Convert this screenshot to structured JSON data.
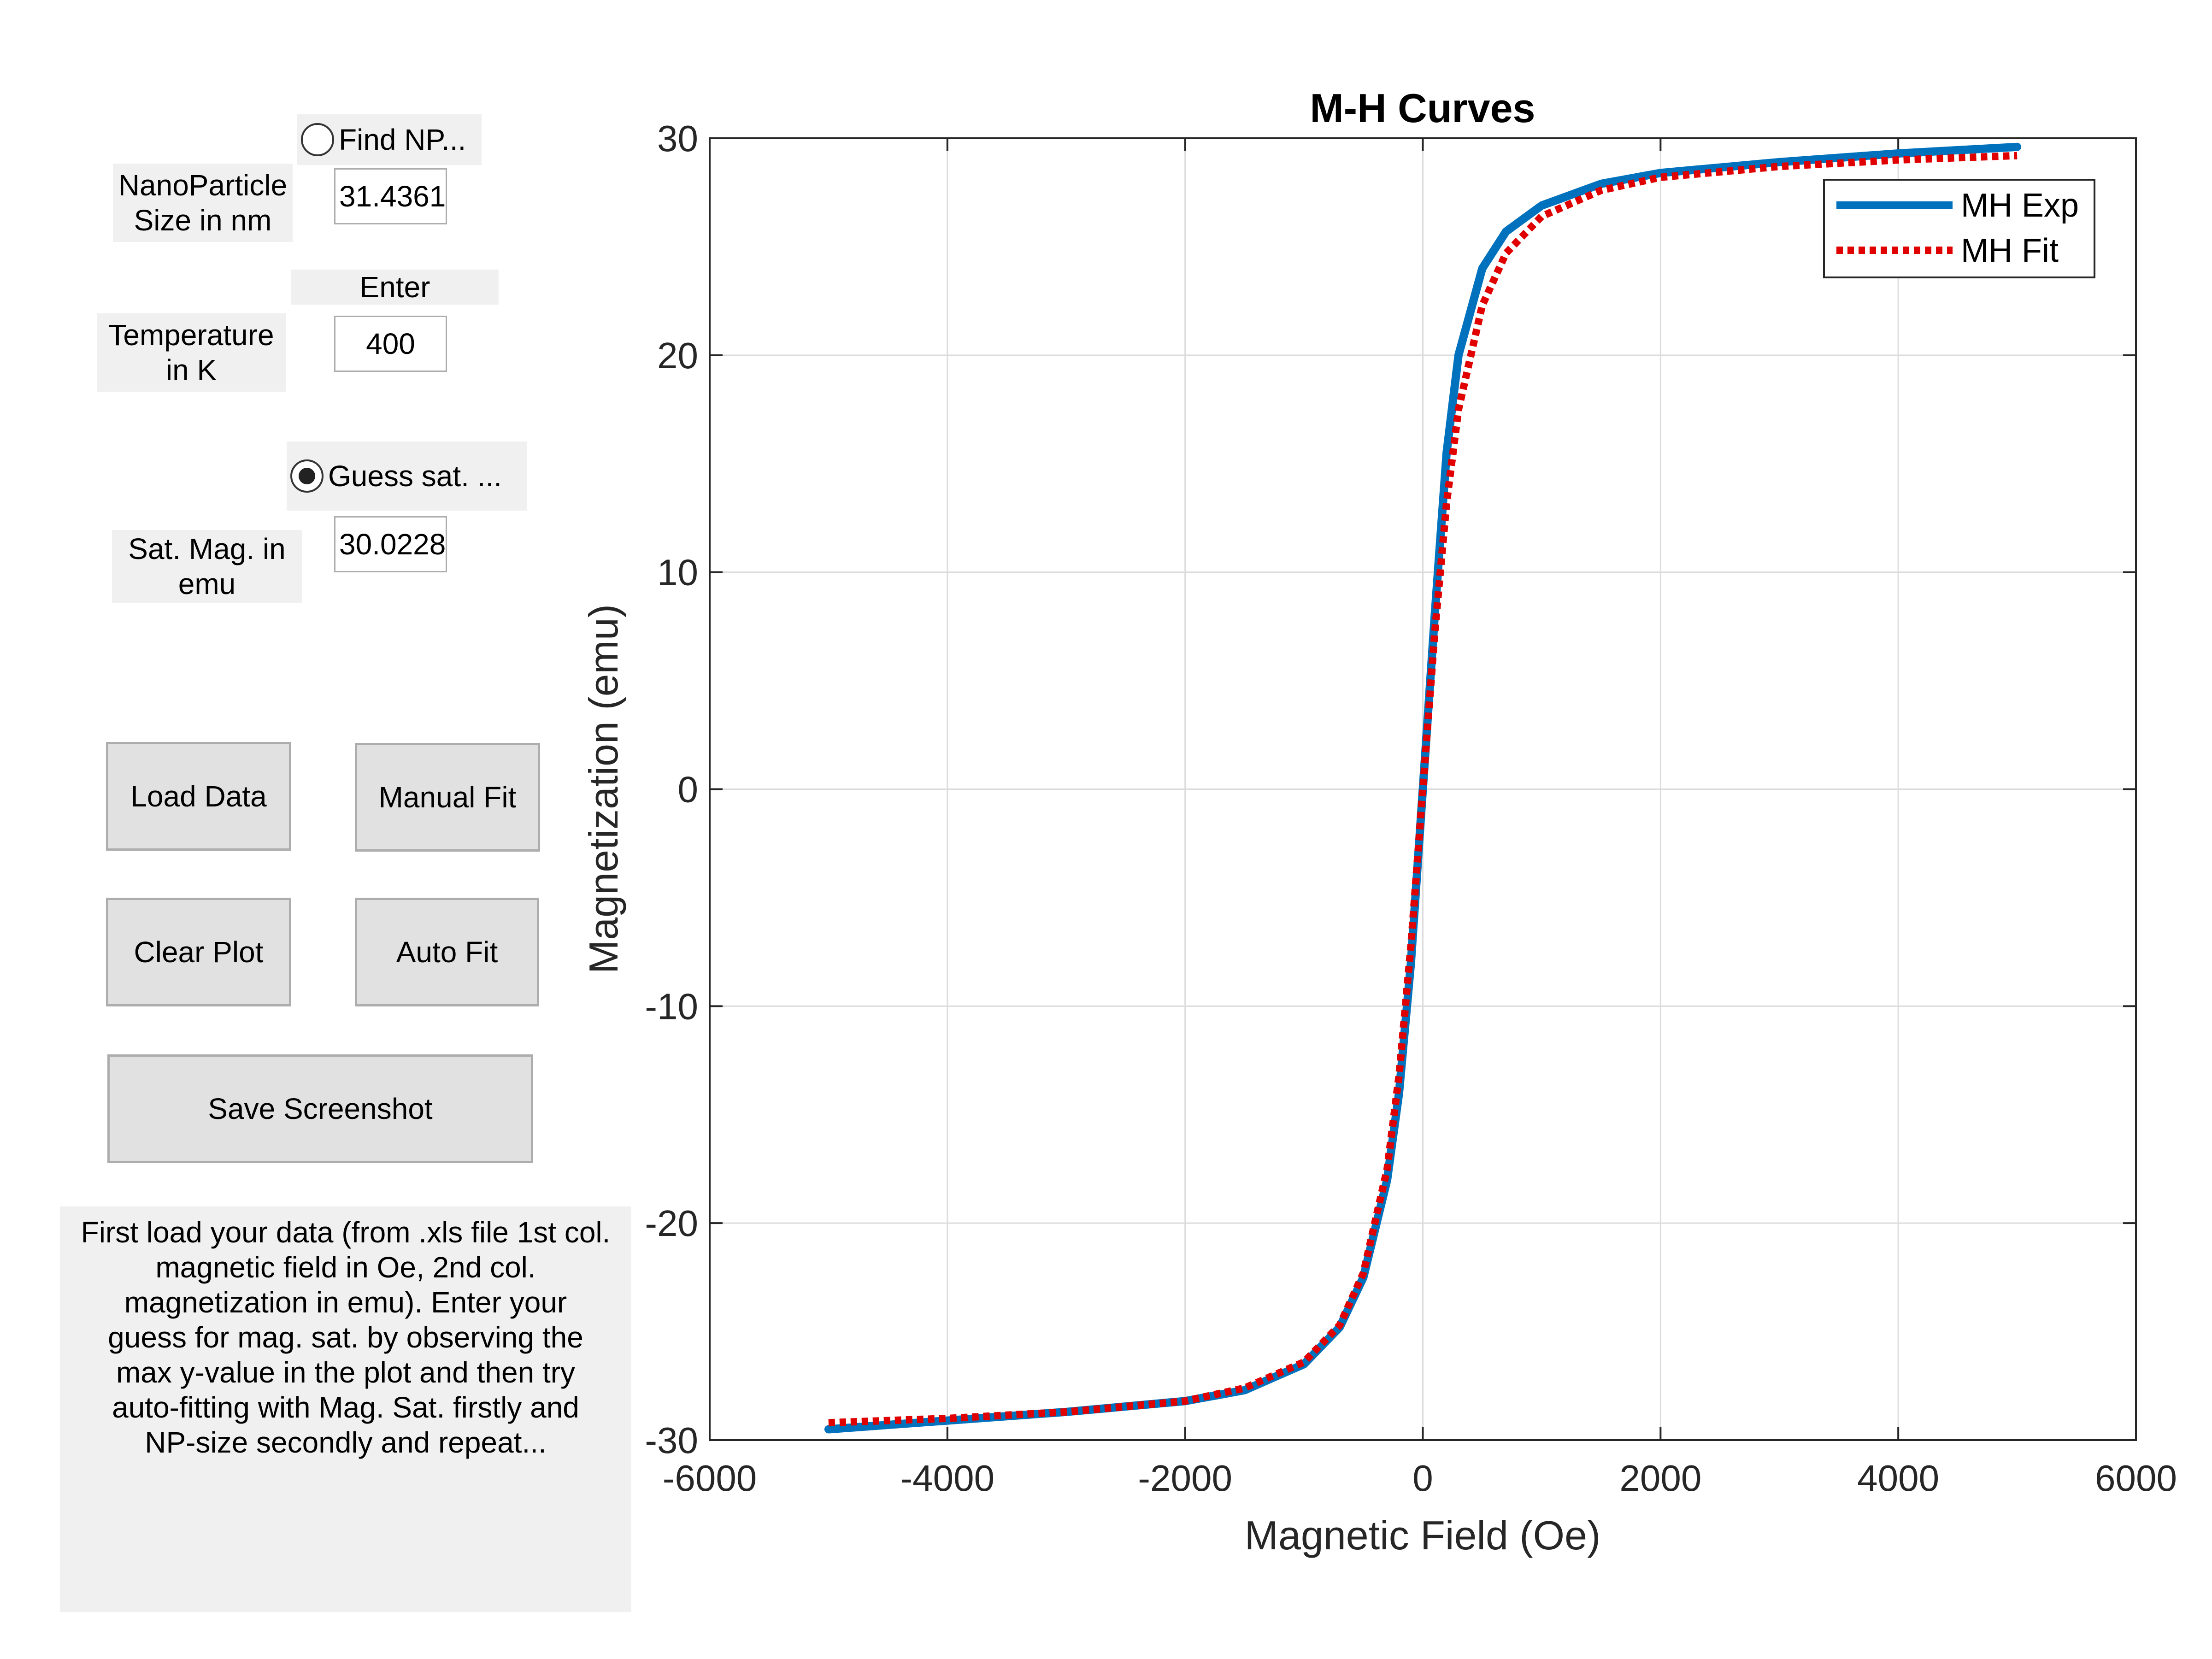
{
  "controls": {
    "find_np_radio": {
      "label": "Find NP...",
      "selected": false
    },
    "np_size_label": "NanoParticle\nSize in nm",
    "np_size_value": "31.4361",
    "enter_label": "Enter",
    "temperature_label": "Temperature\nin K",
    "temperature_value": "400",
    "guess_sat_radio": {
      "label": "Guess sat. ...",
      "selected": true
    },
    "sat_mag_label": "Sat. Mag. in\nemu",
    "sat_mag_value": "30.0228"
  },
  "buttons": {
    "load_data": "Load Data",
    "manual_fit": "Manual Fit",
    "clear_plot": "Clear Plot",
    "auto_fit": "Auto Fit",
    "save_screenshot": "Save Screenshot"
  },
  "help_text": "First load your data (from .xls file 1st col.\nmagnetic field in Oe, 2nd col.\nmagnetization in emu). Enter your\nguess for mag. sat. by observing the\nmax y-value in the plot and then try\nauto-fitting with Mag. Sat. firstly and\nNP-size secondly and repeat...",
  "chart_data": {
    "type": "line",
    "title": "M-H Curves",
    "xlabel": "Magnetic Field (Oe)",
    "ylabel": "Magnetization (emu)",
    "xlim": [
      -6000,
      6000
    ],
    "ylim": [
      -30,
      30
    ],
    "xticks": [
      -6000,
      -4000,
      -2000,
      0,
      2000,
      4000,
      6000
    ],
    "yticks": [
      -30,
      -20,
      -10,
      0,
      10,
      20,
      30
    ],
    "grid": true,
    "legend_position": "top-right",
    "series": [
      {
        "name": "MH Exp",
        "color": "#0072bd",
        "style": "solid",
        "x": [
          -5000,
          -4000,
          -3000,
          -2000,
          -1500,
          -1000,
          -700,
          -500,
          -300,
          -200,
          -100,
          0,
          100,
          200,
          300,
          500,
          700,
          1000,
          1500,
          2000,
          3000,
          4000,
          5000
        ],
        "y": [
          -29.5,
          -29.1,
          -28.7,
          -28.2,
          -27.7,
          -26.5,
          -24.8,
          -22.5,
          -18.0,
          -14.0,
          -8.0,
          0.0,
          8.0,
          15.5,
          20.0,
          24.0,
          25.7,
          26.9,
          27.9,
          28.4,
          28.9,
          29.3,
          29.6
        ]
      },
      {
        "name": "MH Fit",
        "color": "#e00000",
        "style": "dotted",
        "x": [
          -5000,
          -4000,
          -3000,
          -2000,
          -1500,
          -1000,
          -700,
          -500,
          -300,
          -200,
          -100,
          0,
          100,
          200,
          300,
          500,
          700,
          1000,
          1500,
          2000,
          3000,
          4000,
          5000
        ],
        "y": [
          -29.2,
          -29.0,
          -28.7,
          -28.2,
          -27.6,
          -26.4,
          -24.7,
          -22.3,
          -17.5,
          -13.2,
          -7.2,
          0.0,
          7.2,
          13.2,
          17.5,
          22.3,
          24.7,
          26.4,
          27.6,
          28.2,
          28.7,
          29.0,
          29.2
        ]
      }
    ]
  }
}
